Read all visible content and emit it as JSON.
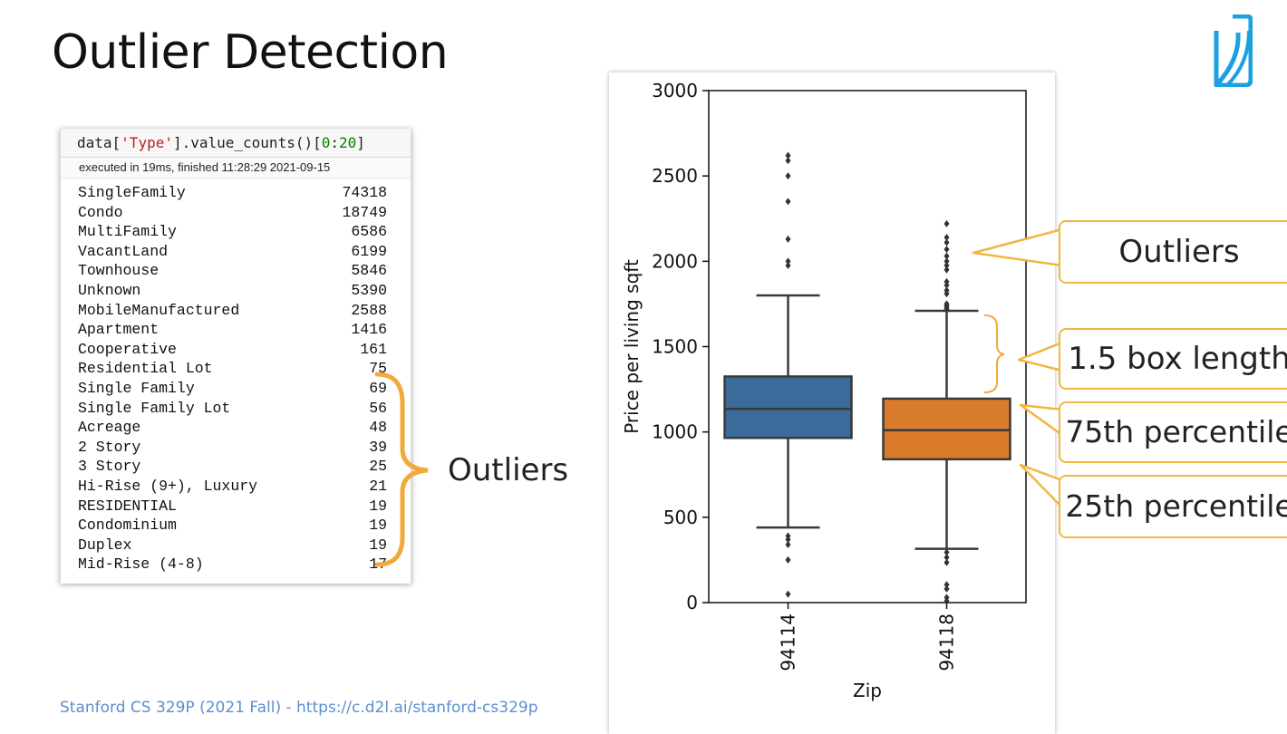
{
  "slide": {
    "title": "Outlier Detection",
    "footer": "Stanford CS 329P (2021 Fall) - https://c.d2l.ai/stanford-cs329p"
  },
  "notebook": {
    "code_prefix": "data[",
    "code_string": "'Type'",
    "code_mid": "].value_counts()[",
    "code_slice_start": "0",
    "code_colon": ":",
    "code_slice_end": "20",
    "code_suffix": "]",
    "exec_info": "executed in 19ms, finished 11:28:29 2021-09-15",
    "rows": [
      {
        "name": "SingleFamily",
        "count": "74318"
      },
      {
        "name": "Condo",
        "count": "18749"
      },
      {
        "name": "MultiFamily",
        "count": "6586"
      },
      {
        "name": "VacantLand",
        "count": "6199"
      },
      {
        "name": "Townhouse",
        "count": "5846"
      },
      {
        "name": "Unknown",
        "count": "5390"
      },
      {
        "name": "MobileManufactured",
        "count": "2588"
      },
      {
        "name": "Apartment",
        "count": "1416"
      },
      {
        "name": "Cooperative",
        "count": "161"
      },
      {
        "name": "Residential Lot",
        "count": "75"
      },
      {
        "name": "Single Family",
        "count": "69"
      },
      {
        "name": "Single Family Lot",
        "count": "56"
      },
      {
        "name": "Acreage",
        "count": "48"
      },
      {
        "name": "2 Story",
        "count": "39"
      },
      {
        "name": "3 Story",
        "count": "25"
      },
      {
        "name": "Hi-Rise (9+), Luxury",
        "count": "21"
      },
      {
        "name": "RESIDENTIAL",
        "count": "19"
      },
      {
        "name": "Condominium",
        "count": "19"
      },
      {
        "name": "Duplex",
        "count": "19"
      },
      {
        "name": "Mid-Rise (4-8)",
        "count": "17"
      }
    ]
  },
  "annotations": {
    "left_outliers": "Outliers",
    "callout_outliers": "Outliers",
    "callout_box_length": "1.5 box length",
    "callout_q3": "75th percentile",
    "callout_q1": "25th percentile"
  },
  "colors": {
    "accent": "#f2a93b",
    "box_94114": "#3a6b9a",
    "box_94118": "#d97b2b",
    "link": "#5b8fd0",
    "logo": "#1ba1e2"
  },
  "chart_data": {
    "type": "box",
    "xlabel": "Zip",
    "ylabel": "Price per living sqft",
    "categories": [
      "94114",
      "94118"
    ],
    "ylim": [
      0,
      3000
    ],
    "yticks": [
      0,
      500,
      1000,
      1500,
      2000,
      2500,
      3000
    ],
    "grid": false,
    "boxes": [
      {
        "category": "94114",
        "whisker_low": 440,
        "q1": 965,
        "median": 1135,
        "q3": 1325,
        "whisker_high": 1800,
        "outliers": [
          2620,
          2590,
          2500,
          2350,
          2130,
          2000,
          1975,
          390,
          370,
          340,
          250,
          50
        ]
      },
      {
        "category": "94118",
        "whisker_low": 315,
        "q1": 840,
        "median": 1010,
        "q3": 1195,
        "whisker_high": 1710,
        "outliers": [
          2220,
          2140,
          2110,
          2070,
          2030,
          2000,
          1975,
          1950,
          1880,
          1860,
          1830,
          1810,
          1750,
          1740,
          1730,
          1720,
          295,
          265,
          235,
          105,
          80,
          30,
          10
        ]
      }
    ]
  }
}
